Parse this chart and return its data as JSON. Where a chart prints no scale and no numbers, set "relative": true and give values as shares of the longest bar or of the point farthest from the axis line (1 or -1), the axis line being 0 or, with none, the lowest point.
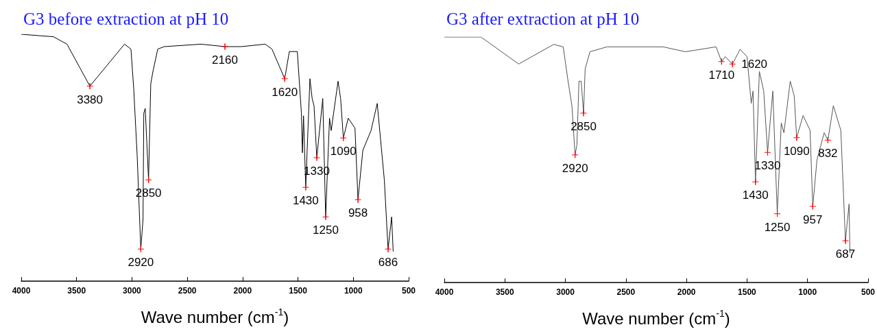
{
  "chart_data": [
    {
      "type": "line",
      "title": "G3 before extraction at pH 10",
      "xlabel": "Wave number (cm$^{-1}$)",
      "relative": true,
      "xlim": [
        4000,
        500
      ],
      "xticks": [
        4000,
        3500,
        3000,
        2500,
        2000,
        1500,
        1000,
        500
      ],
      "grid": false,
      "marker": "none",
      "series": [
        {
          "color": "#000000",
          "x": [
            4000,
            3709,
            3587,
            3380,
            3067,
            3009,
            2984,
            2953,
            2920,
            2900,
            2893,
            2880,
            2850,
            2830,
            2810,
            2767,
            2708,
            2377,
            2160,
            2014,
            1796,
            1735,
            1620,
            1578,
            1506,
            1469,
            1460,
            1450,
            1430,
            1392,
            1372,
            1355,
            1330,
            1276,
            1250,
            1215,
            1200,
            1138,
            1115,
            1090,
            1046,
            985,
            958,
            914,
            840,
            784,
            720,
            686,
            654,
            640
          ],
          "values": [
            1.0,
            0.99,
            0.96,
            0.79,
            0.96,
            0.94,
            0.78,
            0.51,
            0.13,
            0.25,
            0.68,
            0.7,
            0.41,
            0.8,
            0.85,
            0.94,
            0.95,
            0.96,
            0.95,
            0.95,
            0.96,
            0.94,
            0.82,
            0.93,
            0.93,
            0.68,
            0.52,
            0.67,
            0.38,
            0.82,
            0.74,
            0.71,
            0.5,
            0.74,
            0.26,
            0.66,
            0.61,
            0.81,
            0.74,
            0.58,
            0.66,
            0.62,
            0.33,
            0.53,
            0.61,
            0.72,
            0.41,
            0.13,
            0.26,
            0.12
          ]
        }
      ],
      "annotations": [
        {
          "text": "3380",
          "x": 3380,
          "y": 0.79
        },
        {
          "text": "2920",
          "x": 2920,
          "y": 0.13
        },
        {
          "text": "2850",
          "x": 2850,
          "y": 0.41
        },
        {
          "text": "2160",
          "x": 2160,
          "y": 0.95
        },
        {
          "text": "1620",
          "x": 1620,
          "y": 0.82
        },
        {
          "text": "1430",
          "x": 1430,
          "y": 0.38
        },
        {
          "text": "1330",
          "x": 1330,
          "y": 0.5
        },
        {
          "text": "1250",
          "x": 1250,
          "y": 0.26
        },
        {
          "text": "1090",
          "x": 1090,
          "y": 0.58
        },
        {
          "text": "958",
          "x": 958,
          "y": 0.33
        },
        {
          "text": "686",
          "x": 686,
          "y": 0.13
        }
      ]
    },
    {
      "type": "line",
      "title": "G3 after extraction at pH 10",
      "xlabel": "Wave number (cm$^{-1}$)",
      "relative": true,
      "xlim": [
        4000,
        500
      ],
      "xticks": [
        4000,
        3500,
        3000,
        2500,
        2000,
        1500,
        1000,
        500
      ],
      "grid": false,
      "marker": "none",
      "series": [
        {
          "color": "#555555",
          "x": [
            4000,
            3698,
            3640,
            3386,
            3097,
            3018,
            2981,
            2946,
            2920,
            2905,
            2888,
            2870,
            2850,
            2837,
            2797,
            2656,
            2193,
            2009,
            1755,
            1710,
            1680,
            1620,
            1557,
            1500,
            1465,
            1450,
            1430,
            1398,
            1362,
            1330,
            1287,
            1250,
            1217,
            1195,
            1143,
            1110,
            1090,
            1037,
            979,
            957,
            922,
            863,
            832,
            787,
            725,
            687,
            657,
            650
          ],
          "values": [
            1.0,
            1.0,
            0.98,
            0.89,
            0.97,
            0.96,
            0.83,
            0.72,
            0.52,
            0.56,
            0.82,
            0.82,
            0.69,
            0.87,
            0.94,
            0.96,
            0.96,
            0.94,
            0.96,
            0.9,
            0.92,
            0.89,
            0.95,
            0.92,
            0.73,
            0.78,
            0.41,
            0.86,
            0.78,
            0.53,
            0.78,
            0.28,
            0.65,
            0.61,
            0.82,
            0.76,
            0.59,
            0.68,
            0.62,
            0.31,
            0.5,
            0.61,
            0.58,
            0.72,
            0.62,
            0.17,
            0.32,
            0.12
          ]
        }
      ],
      "annotations": [
        {
          "text": "2920",
          "x": 2920,
          "y": 0.52
        },
        {
          "text": "2850",
          "x": 2850,
          "y": 0.69
        },
        {
          "text": "1710",
          "x": 1710,
          "y": 0.9
        },
        {
          "text": "1620",
          "x": 1620,
          "y": 0.89
        },
        {
          "text": "1430",
          "x": 1430,
          "y": 0.41
        },
        {
          "text": "1330",
          "x": 1330,
          "y": 0.53
        },
        {
          "text": "1250",
          "x": 1250,
          "y": 0.28
        },
        {
          "text": "1090",
          "x": 1090,
          "y": 0.59
        },
        {
          "text": "957",
          "x": 957,
          "y": 0.31
        },
        {
          "text": "832",
          "x": 832,
          "y": 0.58
        },
        {
          "text": "687",
          "x": 687,
          "y": 0.17
        }
      ]
    }
  ]
}
